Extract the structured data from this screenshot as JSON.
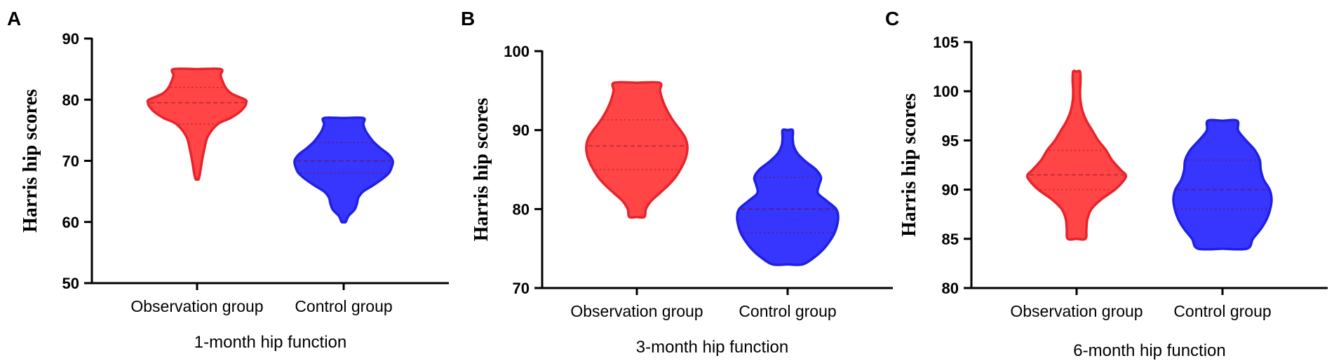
{
  "colors": {
    "observation": "#ff3b3b",
    "observation_stroke": "#e8232a",
    "control": "#2b2bff",
    "control_stroke": "#1f1fe6",
    "axis": "#000000"
  },
  "chart_data": [
    {
      "type": "violin",
      "panel": "A",
      "xlabel": "1-month hip function",
      "ylabel": "Harris hip scores",
      "ylim": [
        50,
        90
      ],
      "yticks": [
        50,
        60,
        70,
        80,
        90
      ],
      "categories": [
        "Observation group",
        "Control group"
      ],
      "series": [
        {
          "min": 67,
          "max": 85,
          "q1": 76,
          "median": 79.5,
          "q3": 82,
          "density": [
            [
              67,
              0.03
            ],
            [
              68,
              0.06
            ],
            [
              70,
              0.1
            ],
            [
              72,
              0.15
            ],
            [
              74,
              0.22
            ],
            [
              76,
              0.42
            ],
            [
              77,
              0.68
            ],
            [
              78,
              0.87
            ],
            [
              79,
              0.98
            ],
            [
              79.5,
              1.0
            ],
            [
              80,
              0.98
            ],
            [
              81,
              0.7
            ],
            [
              82,
              0.58
            ],
            [
              83,
              0.52
            ],
            [
              84,
              0.48
            ],
            [
              85,
              0.48
            ]
          ]
        },
        {
          "min": 60,
          "max": 77,
          "q1": 68,
          "median": 70,
          "q3": 73,
          "density": [
            [
              60,
              0.04
            ],
            [
              61,
              0.1
            ],
            [
              62,
              0.22
            ],
            [
              63,
              0.27
            ],
            [
              64,
              0.3
            ],
            [
              65,
              0.4
            ],
            [
              66,
              0.6
            ],
            [
              67,
              0.78
            ],
            [
              68,
              0.92
            ],
            [
              69,
              0.98
            ],
            [
              70,
              1.0
            ],
            [
              71,
              0.92
            ],
            [
              72,
              0.76
            ],
            [
              73,
              0.62
            ],
            [
              74,
              0.52
            ],
            [
              75,
              0.44
            ],
            [
              76,
              0.4
            ],
            [
              77,
              0.4
            ]
          ]
        }
      ]
    },
    {
      "type": "violin",
      "panel": "B",
      "xlabel": "3-month hip function",
      "ylabel": "Harris hip scores",
      "ylim": [
        70,
        100
      ],
      "yticks": [
        70,
        80,
        90,
        100
      ],
      "categories": [
        "Observation group",
        "Control group"
      ],
      "series": [
        {
          "min": 79,
          "max": 96,
          "q1": 85,
          "median": 88,
          "q3": 91.3,
          "density": [
            [
              79,
              0.15
            ],
            [
              80,
              0.18
            ],
            [
              81,
              0.28
            ],
            [
              82,
              0.45
            ],
            [
              83,
              0.62
            ],
            [
              84,
              0.76
            ],
            [
              85,
              0.86
            ],
            [
              86,
              0.94
            ],
            [
              87,
              0.99
            ],
            [
              88,
              1.0
            ],
            [
              89,
              0.96
            ],
            [
              90,
              0.86
            ],
            [
              91,
              0.74
            ],
            [
              92,
              0.64
            ],
            [
              93,
              0.56
            ],
            [
              94,
              0.5
            ],
            [
              95,
              0.46
            ],
            [
              96,
              0.45
            ]
          ]
        },
        {
          "min": 73,
          "max": 90,
          "q1": 77,
          "median": 80,
          "q3": 84,
          "density": [
            [
              73,
              0.3
            ],
            [
              74,
              0.55
            ],
            [
              75,
              0.72
            ],
            [
              76,
              0.84
            ],
            [
              77,
              0.93
            ],
            [
              78,
              0.98
            ],
            [
              79,
              1.0
            ],
            [
              80,
              0.96
            ],
            [
              81,
              0.78
            ],
            [
              82,
              0.6
            ],
            [
              83,
              0.62
            ],
            [
              84,
              0.66
            ],
            [
              85,
              0.56
            ],
            [
              86,
              0.36
            ],
            [
              87,
              0.2
            ],
            [
              88,
              0.12
            ],
            [
              89,
              0.1
            ],
            [
              90,
              0.1
            ]
          ]
        }
      ]
    },
    {
      "type": "violin",
      "panel": "C",
      "xlabel": "6-month hip function",
      "ylabel": "Harris hip scores",
      "ylim": [
        80,
        105
      ],
      "yticks": [
        80,
        85,
        90,
        95,
        100,
        105
      ],
      "categories": [
        "Observation group",
        "Control group"
      ],
      "series": [
        {
          "min": 85,
          "max": 102,
          "q1": 90,
          "median": 91.5,
          "q3": 94,
          "density": [
            [
              85,
              0.18
            ],
            [
              86,
              0.2
            ],
            [
              87,
              0.22
            ],
            [
              88,
              0.3
            ],
            [
              89,
              0.5
            ],
            [
              90,
              0.78
            ],
            [
              91,
              0.97
            ],
            [
              91.5,
              1.0
            ],
            [
              92,
              0.9
            ],
            [
              93,
              0.72
            ],
            [
              94,
              0.6
            ],
            [
              95,
              0.44
            ],
            [
              96,
              0.32
            ],
            [
              97,
              0.2
            ],
            [
              98,
              0.12
            ],
            [
              99,
              0.08
            ],
            [
              100,
              0.07
            ],
            [
              101,
              0.08
            ],
            [
              102,
              0.07
            ]
          ]
        },
        {
          "min": 84,
          "max": 97,
          "q1": 88,
          "median": 90,
          "q3": 93,
          "density": [
            [
              84,
              0.5
            ],
            [
              85,
              0.62
            ],
            [
              86,
              0.78
            ],
            [
              87,
              0.9
            ],
            [
              88,
              0.97
            ],
            [
              89,
              1.0
            ],
            [
              90,
              0.96
            ],
            [
              91,
              0.84
            ],
            [
              92,
              0.78
            ],
            [
              93,
              0.76
            ],
            [
              94,
              0.66
            ],
            [
              95,
              0.48
            ],
            [
              96,
              0.32
            ],
            [
              97,
              0.3
            ]
          ]
        }
      ]
    }
  ]
}
